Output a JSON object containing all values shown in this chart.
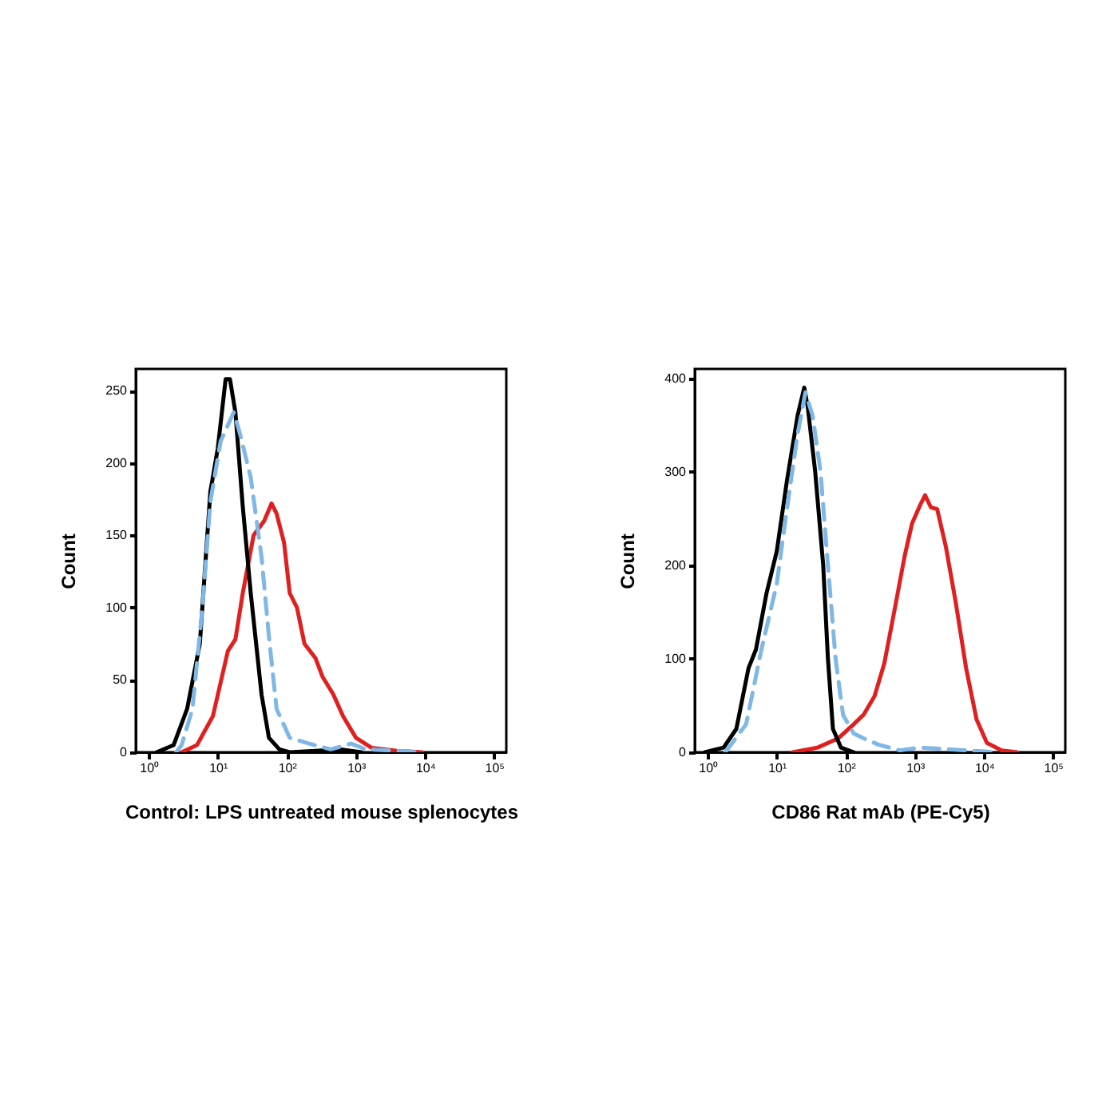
{
  "chart_data": [
    {
      "type": "line",
      "xlabel": "Control: LPS untreated mouse splenocytes",
      "ylabel": "Count",
      "log": "x",
      "grid": false,
      "xlim": [
        0.65,
        150000
      ],
      "xticks": [
        {
          "value": 1,
          "label": "10⁰"
        },
        {
          "value": 10,
          "label": "10¹"
        },
        {
          "value": 100,
          "label": "10²"
        },
        {
          "value": 1000,
          "label": "10³"
        },
        {
          "value": 10000,
          "label": "10⁴"
        },
        {
          "value": 100000,
          "label": "10⁵"
        }
      ],
      "ylim": [
        0,
        265
      ],
      "yticks": [
        0,
        50,
        100,
        150,
        200,
        250
      ],
      "series": [
        {
          "color": "#e02020",
          "line_style": "solid",
          "x": [
            3.0,
            5.0,
            8.5,
            14,
            18,
            23,
            33,
            47,
            60,
            71,
            91,
            110,
            140,
            180,
            260,
            330,
            470,
            650,
            1000,
            1700,
            3900,
            9100
          ],
          "values": [
            0,
            5,
            25,
            70,
            78,
            110,
            150,
            160,
            172,
            165,
            145,
            110,
            100,
            75,
            65,
            52,
            40,
            25,
            10,
            3,
            1,
            0
          ]
        },
        {
          "color": "#000000",
          "line_style": "solid",
          "x": [
            1.3,
            2.3,
            3.6,
            5.5,
            7.8,
            10,
            13,
            15,
            18,
            23,
            30,
            43,
            55,
            78,
            110,
            600,
            1200
          ],
          "values": [
            0,
            5,
            30,
            75,
            180,
            210,
            258,
            258,
            235,
            170,
            110,
            40,
            10,
            2,
            0,
            2,
            0
          ]
        },
        {
          "color": "#7fb7e6",
          "line_style": "dashed",
          "x": [
            2.5,
            3.0,
            4.3,
            6.0,
            7.8,
            11,
            17,
            21,
            30,
            43,
            55,
            71,
            110,
            210,
            430,
            850,
            1400,
            4000,
            7900
          ],
          "values": [
            0,
            5,
            30,
            100,
            173,
            215,
            235,
            220,
            190,
            135,
            80,
            30,
            10,
            6,
            2,
            6,
            2,
            1,
            0
          ]
        }
      ]
    },
    {
      "type": "line",
      "xlabel": "CD86 Rat mAb (PE-Cy5)",
      "ylabel": "Count",
      "log": "x",
      "grid": false,
      "xlim": [
        0.65,
        150000
      ],
      "xticks": [
        {
          "value": 1,
          "label": "10⁰"
        },
        {
          "value": 10,
          "label": "10¹"
        },
        {
          "value": 100,
          "label": "10²"
        },
        {
          "value": 1000,
          "label": "10³"
        },
        {
          "value": 10000,
          "label": "10⁴"
        },
        {
          "value": 100000,
          "label": "10⁵"
        }
      ],
      "ylim": [
        0,
        410
      ],
      "yticks": [
        0,
        100,
        200,
        300,
        400
      ],
      "series": [
        {
          "color": "#e02020",
          "line_style": "solid",
          "x": [
            17,
            39,
            78,
            130,
            180,
            260,
            360,
            500,
            710,
            910,
            1200,
            1400,
            1700,
            2100,
            2800,
            3900,
            5500,
            7800,
            11000,
            18000,
            30000
          ],
          "values": [
            0,
            5,
            15,
            30,
            40,
            60,
            95,
            150,
            210,
            245,
            265,
            275,
            262,
            260,
            220,
            160,
            90,
            35,
            10,
            2,
            0
          ]
        },
        {
          "color": "#000000",
          "line_style": "solid",
          "x": [
            0.91,
            1.7,
            2.6,
            3.9,
            5.0,
            7.1,
            10,
            14,
            20,
            25,
            28,
            36,
            47,
            55,
            65,
            85,
            130
          ],
          "values": [
            0,
            5,
            25,
            90,
            110,
            170,
            215,
            290,
            360,
            390,
            370,
            300,
            200,
            100,
            25,
            5,
            0
          ]
        },
        {
          "color": "#7fb7e6",
          "line_style": "dashed",
          "x": [
            1.8,
            3.6,
            6.0,
            10,
            14,
            20,
            26,
            33,
            43,
            55,
            71,
            91,
            130,
            180,
            300,
            600,
            1200,
            3300,
            9100,
            15000
          ],
          "values": [
            0,
            30,
            110,
            180,
            260,
            340,
            385,
            360,
            300,
            200,
            100,
            40,
            20,
            15,
            8,
            2,
            5,
            3,
            1,
            0
          ]
        }
      ]
    }
  ]
}
